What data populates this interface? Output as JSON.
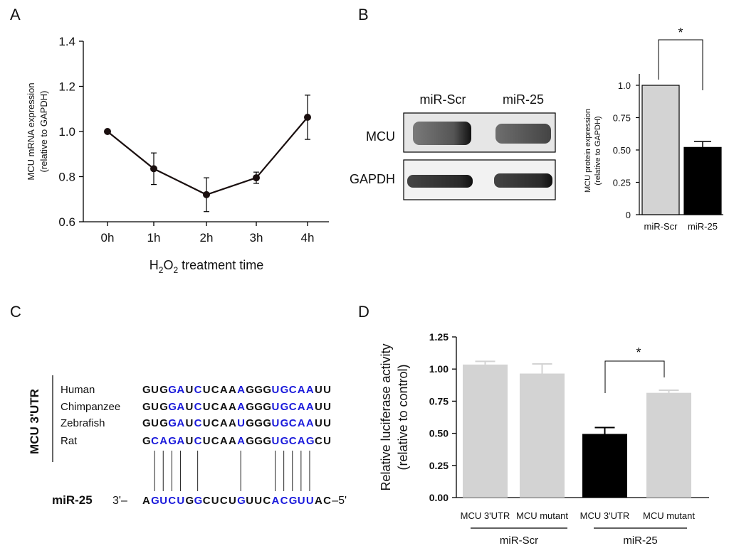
{
  "panel_labels": [
    "A",
    "B",
    "C",
    "D"
  ],
  "colors": {
    "gray_bar": "#d3d3d3",
    "black_bar": "#000000",
    "line": "#1a0f0f",
    "blue_base": "#1a1adb"
  },
  "blot": {
    "lanes": [
      "miR-Scr",
      "miR-25"
    ],
    "rows": [
      "MCU",
      "GAPDH"
    ]
  },
  "sequence_panel": {
    "side_label": "MCU 3'UTR",
    "species": [
      "Human",
      "Chimpanzee",
      "Zebrafish",
      "Rat"
    ],
    "utr_sequences": [
      "GUGGAUCUCAAAGGGUGCAAUU",
      "GUGGAUCUCAAAGGGUGCAAUU",
      "GUGGAUCUCAAUGGGUGCAAUU",
      "GCAGAUCUCAAAGGGUGCAGCU"
    ],
    "mirna_label": "miR-25",
    "mirna_prefix": "3'–",
    "mirna_sequence": "AGUCUGGCUCUGUUCACGUUAC",
    "mirna_suffix": "–5'"
  },
  "chart_data": [
    {
      "panel": "A",
      "type": "line",
      "categories": [
        "0h",
        "1h",
        "2h",
        "3h",
        "4h"
      ],
      "values": [
        1.0,
        0.835,
        0.72,
        0.795,
        1.063
      ],
      "errors": [
        0.0,
        0.07,
        0.075,
        0.025,
        0.098
      ],
      "ylabel_line1": "MCU mRNA expression",
      "ylabel_line2": "(relative to GAPDH)",
      "xlabel_main": "H",
      "xlabel_sub1": "2",
      "xlabel_mid": "O",
      "xlabel_sub2": "2",
      "xlabel_rest": " treatment time",
      "ylim": [
        0.6,
        1.4
      ],
      "yticks": [
        "0.6",
        "0.8",
        "1.0",
        "1.2",
        "1.4"
      ]
    },
    {
      "panel": "B",
      "type": "bar",
      "categories": [
        "miR-Scr",
        "miR-25"
      ],
      "values": [
        1.0,
        0.52
      ],
      "errors": [
        0.0,
        0.045
      ],
      "ylabel_line1": "MCU protein expression",
      "ylabel_line2": "(relative to GAPDH)",
      "ylim": [
        0,
        1.0
      ],
      "yticks": [
        "0",
        "0.25",
        "0.50",
        "0.75",
        "1.0"
      ],
      "significance": "*"
    },
    {
      "panel": "D",
      "type": "bar",
      "categories": [
        "MCU 3'UTR",
        "MCU mutant",
        "MCU 3'UTR",
        "MCU mutant"
      ],
      "groups": [
        "miR-Scr",
        "miR-25"
      ],
      "values": [
        1.035,
        0.965,
        0.495,
        0.815
      ],
      "errors": [
        0.025,
        0.075,
        0.05,
        0.02
      ],
      "ylabel_line1": "Relative luciferase activity",
      "ylabel_line2": "(relative to control)",
      "ylim": [
        0,
        1.25
      ],
      "yticks": [
        "0.00",
        "0.25",
        "0.50",
        "0.75",
        "1.00",
        "1.25"
      ],
      "significance": "*"
    }
  ]
}
